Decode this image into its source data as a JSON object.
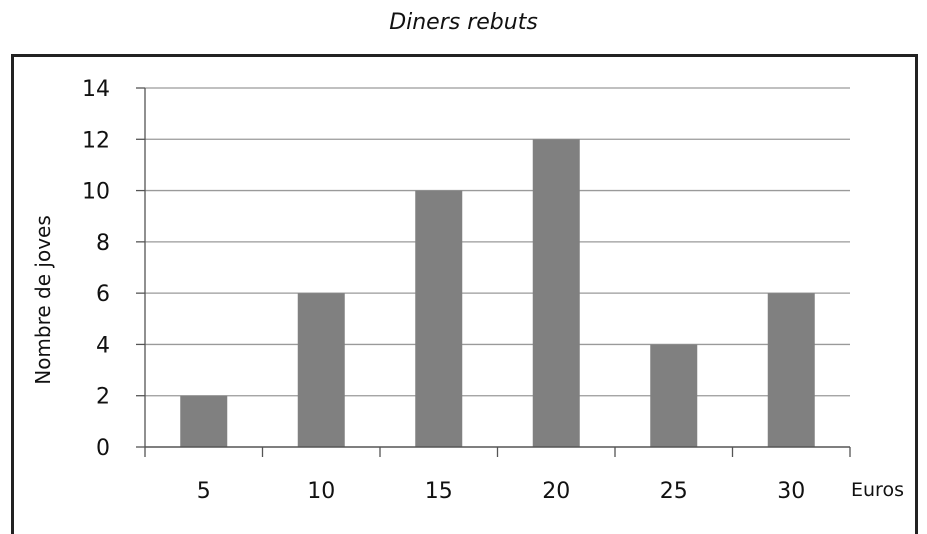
{
  "chart_data": {
    "type": "bar",
    "title": "Diners rebuts",
    "xlabel": "Euros",
    "ylabel": "Nombre de joves",
    "categories": [
      "5",
      "10",
      "15",
      "20",
      "25",
      "30"
    ],
    "values": [
      2,
      6,
      10,
      12,
      4,
      6
    ],
    "ylim": [
      0,
      14
    ],
    "yticks": [
      0,
      2,
      4,
      6,
      8,
      10,
      12,
      14
    ],
    "grid": true,
    "bar_color": "#808080",
    "grid_color": "#9a9a9a",
    "axis_color": "#555555"
  }
}
